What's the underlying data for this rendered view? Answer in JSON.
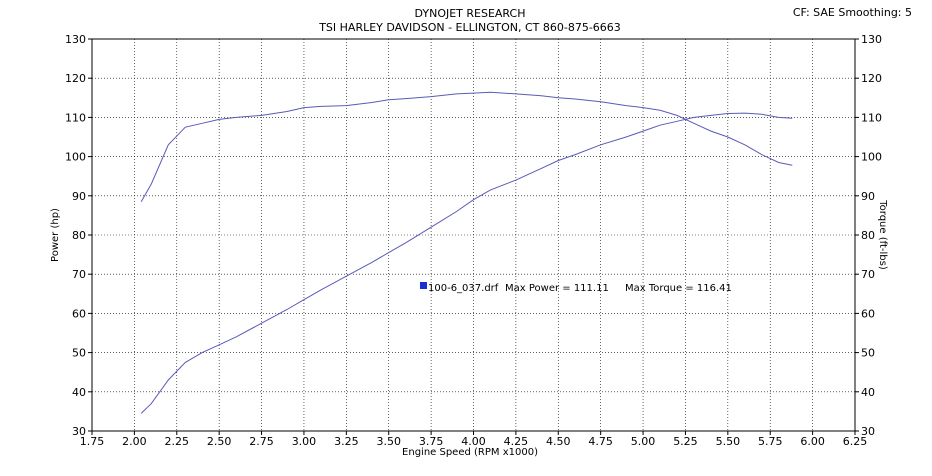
{
  "header": {
    "title": "DYNOJET RESEARCH",
    "subtitle": "TSI HARLEY DAVIDSON - ELLINGTON, CT 860-875-6663",
    "settings": "CF: SAE  Smoothing: 5"
  },
  "chart_data": {
    "type": "line",
    "xlabel": "Engine Speed (RPM x1000)",
    "ylabel": "Power (hp)",
    "y2label": "Torque (ft-lbs)",
    "xlim": [
      1.75,
      6.25
    ],
    "ylim": [
      30,
      130
    ],
    "y2lim": [
      30,
      130
    ],
    "x_ticks": [
      "1.75",
      "2.00",
      "2.25",
      "2.50",
      "2.75",
      "3.00",
      "3.25",
      "3.50",
      "3.75",
      "4.00",
      "4.25",
      "4.50",
      "4.75",
      "5.00",
      "5.25",
      "5.50",
      "5.75",
      "6.00",
      "6.25"
    ],
    "y_ticks": [
      "30",
      "40",
      "50",
      "60",
      "70",
      "80",
      "90",
      "100",
      "110",
      "120",
      "130"
    ],
    "grid": true,
    "line_color": "#5a5ab8",
    "series": [
      {
        "axis": "left",
        "x": [
          2.04,
          2.1,
          2.2,
          2.3,
          2.4,
          2.5,
          2.6,
          2.75,
          2.9,
          3.0,
          3.1,
          3.25,
          3.4,
          3.5,
          3.6,
          3.75,
          3.9,
          4.0,
          4.1,
          4.25,
          4.4,
          4.5,
          4.6,
          4.75,
          4.9,
          5.0,
          5.1,
          5.2,
          5.3,
          5.4,
          5.5,
          5.6,
          5.7,
          5.8,
          5.88
        ],
        "y": [
          34.5,
          37,
          43,
          47.5,
          50,
          52,
          54,
          57.5,
          61,
          63.5,
          66,
          69.5,
          73,
          75.5,
          78,
          82,
          86,
          89,
          91.5,
          94,
          97,
          99,
          100.5,
          103,
          105,
          106.5,
          108,
          109,
          110,
          110.5,
          111,
          111.1,
          110.8,
          110,
          109.8
        ]
      },
      {
        "axis": "right",
        "x": [
          2.04,
          2.1,
          2.2,
          2.3,
          2.4,
          2.5,
          2.6,
          2.75,
          2.9,
          3.0,
          3.1,
          3.25,
          3.4,
          3.5,
          3.6,
          3.75,
          3.9,
          4.0,
          4.1,
          4.25,
          4.4,
          4.5,
          4.6,
          4.75,
          4.9,
          5.0,
          5.1,
          5.2,
          5.3,
          5.4,
          5.5,
          5.6,
          5.7,
          5.8,
          5.88
        ],
        "y": [
          88.5,
          93,
          103,
          107.5,
          108.5,
          109.5,
          110,
          110.5,
          111.5,
          112.5,
          112.8,
          113,
          113.8,
          114.5,
          114.8,
          115.3,
          116,
          116.2,
          116.41,
          116,
          115.5,
          115,
          114.7,
          114,
          113,
          112.5,
          111.8,
          110.5,
          108.5,
          106.5,
          105,
          103,
          100.5,
          98.5,
          97.8
        ]
      }
    ],
    "annotation": {
      "file": "100-6_037.drf",
      "max_power_label": "Max Power = 111.11",
      "max_torque_label": "Max Torque = 116.41",
      "marker_color": "#1a2fd4"
    }
  }
}
